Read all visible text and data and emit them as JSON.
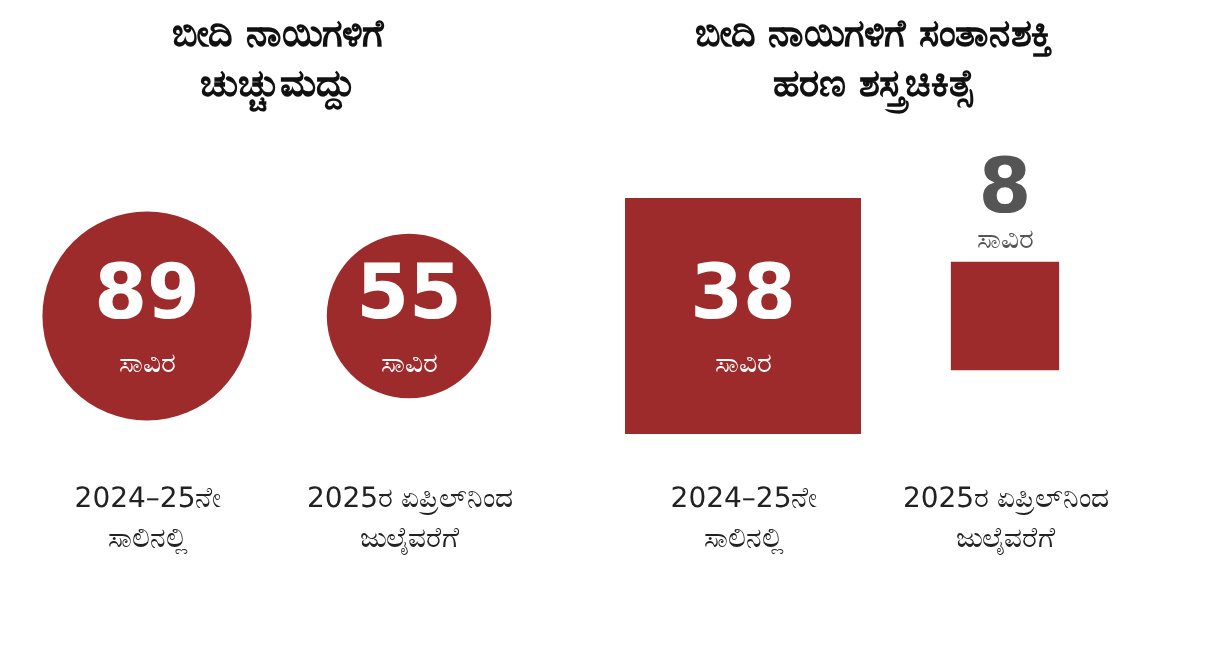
{
  "chart_data": [
    {
      "type": "other",
      "title": "ಬೀದಿ ನಾಯಿಗಳಿಗೆ\nಚುಚ್ಚುಮದ್ದು",
      "categories": [
        "2024–25ನೇ\nಸಾಲಿನಲ್ಲಿ",
        "2025ರ ಏಪ್ರಿಲ್‌ನಿಂದ\nಜುಲೈವರೆಗೆ"
      ],
      "values": [
        89,
        55
      ],
      "data_labels": true,
      "annotations": [
        "ಸಾವಿರ",
        "ಸಾವಿರ"
      ],
      "color": "#9e2b2b"
    },
    {
      "type": "other",
      "title": "ಬೀದಿ ನಾಯಿಗಳಿಗೆ ಸಂತಾನಶಕ್ತಿ\nಹರಣ ಶಸ್ತ್ರಚಿಕಿತ್ಸೆ",
      "categories": [
        "2024–25ನೇ\nಸಾಲಿನಲ್ಲಿ",
        "2025ರ ಏಪ್ರಿಲ್‌ನಿಂದ\nಜುಲೈವರೆಗೆ"
      ],
      "values": [
        38,
        8
      ],
      "data_labels": true,
      "annotations": [
        "ಸಾವಿರ",
        "ಸಾವಿರ"
      ],
      "color": "#9e2b2b"
    }
  ]
}
